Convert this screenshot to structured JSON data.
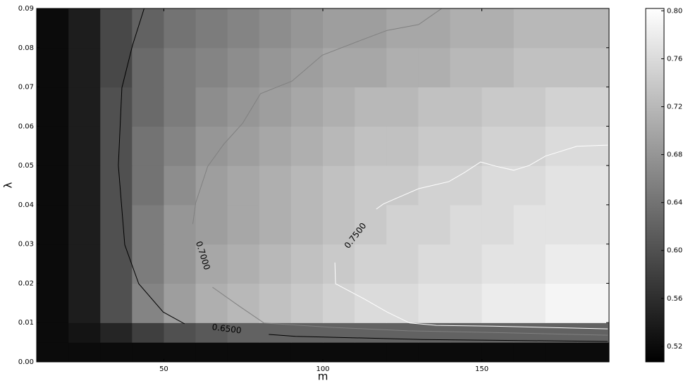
{
  "chart_data": {
    "type": "contour",
    "xlabel": "m",
    "ylabel": "λ",
    "xlim": [
      10,
      190
    ],
    "ylim": [
      0,
      0.09
    ],
    "xticks": [
      50,
      100,
      150
    ],
    "yticks": [
      {
        "value": 0,
        "label": "0.00"
      },
      0.01,
      0.02,
      0.03,
      0.04,
      0.05,
      0.06,
      0.07,
      0.08,
      0.09
    ],
    "xbins": [
      10,
      20,
      30,
      40,
      50,
      60,
      70,
      80,
      90,
      100,
      110,
      120,
      130,
      140,
      150,
      160,
      170,
      180,
      190
    ],
    "ybins": [
      0,
      0.005,
      0.01,
      0.015,
      0.02,
      0.03,
      0.04,
      0.05,
      0.06,
      0.07,
      0.08,
      0.09
    ],
    "z": [
      [
        0.52,
        0.52,
        0.52,
        0.52,
        0.52,
        0.52,
        0.52,
        0.52,
        0.52,
        0.52,
        0.52,
        0.52,
        0.52,
        0.52,
        0.52,
        0.52,
        0.52,
        0.52
      ],
      [
        0.52,
        0.53,
        0.55,
        0.58,
        0.6,
        0.61,
        0.62,
        0.62,
        0.62,
        0.62,
        0.62,
        0.62,
        0.62,
        0.62,
        0.62,
        0.62,
        0.62,
        0.62
      ],
      [
        0.52,
        0.54,
        0.6,
        0.66,
        0.69,
        0.71,
        0.72,
        0.73,
        0.74,
        0.75,
        0.76,
        0.76,
        0.77,
        0.77,
        0.78,
        0.78,
        0.79,
        0.79
      ],
      [
        0.52,
        0.54,
        0.6,
        0.66,
        0.69,
        0.71,
        0.72,
        0.73,
        0.74,
        0.75,
        0.76,
        0.76,
        0.77,
        0.77,
        0.78,
        0.78,
        0.79,
        0.79
      ],
      [
        0.52,
        0.54,
        0.6,
        0.65,
        0.68,
        0.7,
        0.71,
        0.72,
        0.73,
        0.74,
        0.75,
        0.75,
        0.76,
        0.76,
        0.77,
        0.77,
        0.78,
        0.78
      ],
      [
        0.52,
        0.54,
        0.6,
        0.65,
        0.68,
        0.69,
        0.7,
        0.71,
        0.72,
        0.73,
        0.74,
        0.75,
        0.75,
        0.76,
        0.76,
        0.77,
        0.77,
        0.77
      ],
      [
        0.52,
        0.54,
        0.6,
        0.64,
        0.67,
        0.69,
        0.7,
        0.71,
        0.72,
        0.73,
        0.74,
        0.74,
        0.75,
        0.75,
        0.76,
        0.76,
        0.77,
        0.77
      ],
      [
        0.52,
        0.54,
        0.6,
        0.64,
        0.66,
        0.68,
        0.69,
        0.7,
        0.71,
        0.72,
        0.73,
        0.73,
        0.74,
        0.74,
        0.75,
        0.75,
        0.76,
        0.76
      ],
      [
        0.52,
        0.54,
        0.6,
        0.63,
        0.65,
        0.67,
        0.68,
        0.69,
        0.7,
        0.71,
        0.72,
        0.72,
        0.73,
        0.73,
        0.74,
        0.74,
        0.75,
        0.75
      ],
      [
        0.52,
        0.54,
        0.59,
        0.63,
        0.65,
        0.66,
        0.67,
        0.68,
        0.69,
        0.7,
        0.7,
        0.71,
        0.71,
        0.72,
        0.72,
        0.73,
        0.73,
        0.73
      ],
      [
        0.52,
        0.54,
        0.59,
        0.62,
        0.64,
        0.65,
        0.66,
        0.67,
        0.68,
        0.69,
        0.69,
        0.7,
        0.7,
        0.71,
        0.71,
        0.72,
        0.72,
        0.72
      ]
    ],
    "clim": [
      0.507,
      0.802
    ],
    "cticks": [
      0.52,
      0.56,
      {
        "value": 0.6,
        "label": "0.60"
      },
      0.64,
      0.68,
      0.72,
      0.76,
      {
        "value": 0.8,
        "label": "0.80"
      }
    ],
    "contours": [
      {
        "level": 0.65,
        "level_label": "0.6500",
        "color": "#000000",
        "x": [
          43.8,
          40.1,
          36.8,
          35.7,
          37.7,
          42.1,
          49.8,
          56.5,
          null,
          83.0,
          91.4,
          131.2,
          189.6
        ],
        "y": [
          0.09,
          0.0805,
          0.0698,
          0.05,
          0.0298,
          0.0199,
          0.0127,
          0.0097,
          null,
          0.007,
          0.0065,
          0.0057,
          0.0052
        ]
      },
      {
        "level": 0.7,
        "level_label": "0.7000",
        "color": "#808080",
        "x": [
          137.4,
          130.1,
          120.2,
          111.3,
          99.8,
          90.3,
          80.4,
          74.8,
          68.8,
          63.8,
          60.0,
          59.1,
          null,
          65.3,
          73.7,
          81.5,
          102.5,
          126.8,
          153.4,
          189.6
        ],
        "y": [
          0.09,
          0.0859,
          0.0844,
          0.0817,
          0.0781,
          0.0715,
          0.0683,
          0.0608,
          0.0554,
          0.0498,
          0.0405,
          0.0351,
          null,
          0.019,
          0.0142,
          0.0099,
          0.0088,
          0.0079,
          0.0075,
          0.0068
        ]
      },
      {
        "level": 0.75,
        "level_label": "0.7500",
        "color": "#ffffff",
        "x": [
          189.6,
          179.9,
          170.0,
          164.9,
          160.0,
          154.5,
          149.6,
          144.5,
          139.6,
          130.1,
          122.4,
          119.0,
          116.8,
          null,
          103.8,
          104.0,
          113.1,
          120.2,
          127.3,
          135.7,
          153.4,
          189.6
        ],
        "y": [
          0.0552,
          0.0549,
          0.0524,
          0.05,
          0.0488,
          0.0498,
          0.0509,
          0.0482,
          0.0459,
          0.0441,
          0.0414,
          0.0402,
          0.0389,
          null,
          0.0253,
          0.0199,
          0.016,
          0.0127,
          0.0099,
          0.0093,
          0.0091,
          0.0084
        ]
      }
    ]
  }
}
